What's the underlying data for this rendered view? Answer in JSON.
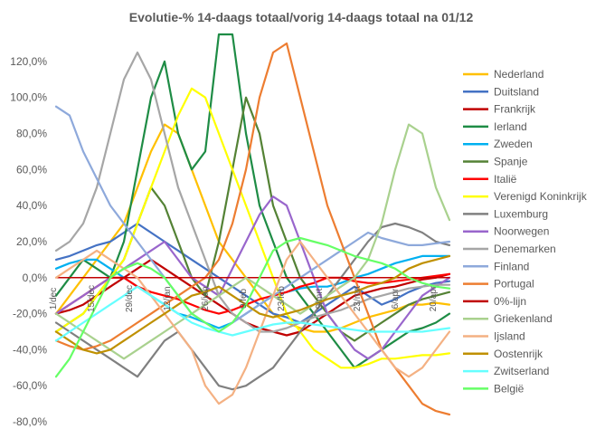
{
  "chart_data": {
    "type": "line",
    "title": "Evolutie-% 14-daags totaal/vorig  14-daags totaal na 01/12",
    "ylabel": "",
    "xlabel": "",
    "ylim": [
      -80,
      130
    ],
    "y_ticks": [
      {
        "value": 120,
        "label": "120,0%"
      },
      {
        "value": 100,
        "label": "100,0%"
      },
      {
        "value": 80,
        "label": "80,0%"
      },
      {
        "value": 60,
        "label": "60,0%"
      },
      {
        "value": 40,
        "label": "40,0%"
      },
      {
        "value": 20,
        "label": "20,0%"
      },
      {
        "value": 0,
        "label": "0,0%"
      },
      {
        "value": -20,
        "label": "-20,0%"
      },
      {
        "value": -40,
        "label": "-40,0%"
      },
      {
        "value": -60,
        "label": "-60,0%"
      },
      {
        "value": -80,
        "label": "-80,0%"
      }
    ],
    "x_ticks": [
      {
        "x": 0,
        "label": "1/dec"
      },
      {
        "x": 14,
        "label": "15/dec"
      },
      {
        "x": 28,
        "label": "29/dec"
      },
      {
        "x": 42,
        "label": "12/jan"
      },
      {
        "x": 56,
        "label": "26/jan"
      },
      {
        "x": 70,
        "label": "9/feb"
      },
      {
        "x": 84,
        "label": "23/feb"
      },
      {
        "x": 98,
        "label": "9/mrt"
      },
      {
        "x": 112,
        "label": "23/mrt"
      },
      {
        "x": 126,
        "label": "6/apr"
      },
      {
        "x": 140,
        "label": "20/apr"
      }
    ],
    "x": [
      0,
      5,
      10,
      15,
      20,
      25,
      30,
      35,
      40,
      45,
      50,
      55,
      60,
      65,
      70,
      75,
      80,
      85,
      90,
      95,
      100,
      105,
      110,
      115,
      120,
      125,
      130,
      135,
      140,
      145
    ],
    "xlim": [
      0,
      146
    ],
    "legend_position": "right",
    "grid": false,
    "series": [
      {
        "name": "Nederland",
        "color": "#FFC000",
        "values": [
          -20,
          -10,
          0,
          10,
          20,
          30,
          50,
          70,
          85,
          80,
          60,
          40,
          20,
          10,
          0,
          -10,
          -20,
          -25,
          -28,
          -30,
          -30,
          -28,
          -25,
          -22,
          -20,
          -18,
          -15,
          -15,
          -14,
          -15
        ]
      },
      {
        "name": "Duitsland",
        "color": "#4472C4",
        "values": [
          10,
          12,
          15,
          18,
          20,
          25,
          30,
          25,
          20,
          15,
          10,
          5,
          0,
          -5,
          -10,
          -15,
          -20,
          -22,
          -25,
          -20,
          -15,
          -10,
          -5,
          -10,
          -15,
          -12,
          -8,
          -5,
          -3,
          -2
        ]
      },
      {
        "name": "Frankrijk",
        "color": "#C00000",
        "values": [
          -20,
          -18,
          -15,
          -10,
          -5,
          0,
          5,
          10,
          5,
          0,
          -5,
          -10,
          -15,
          -20,
          -25,
          -28,
          -30,
          -32,
          -30,
          -25,
          -20,
          -15,
          -10,
          -8,
          -6,
          -5,
          -3,
          -1,
          0,
          2
        ]
      },
      {
        "name": "Ierland",
        "color": "#1E8C45",
        "values": [
          -10,
          0,
          10,
          5,
          0,
          20,
          60,
          100,
          120,
          80,
          60,
          70,
          135,
          135,
          80,
          40,
          20,
          0,
          -10,
          -20,
          -30,
          -40,
          -50,
          -45,
          -40,
          -35,
          -30,
          -28,
          -25,
          -20
        ]
      },
      {
        "name": "Zweden",
        "color": "#00B0F0",
        "values": [
          5,
          8,
          10,
          10,
          5,
          0,
          -5,
          -10,
          -15,
          -20,
          -22,
          -25,
          -28,
          -25,
          -20,
          -15,
          -10,
          -8,
          -6,
          -5,
          -5,
          -3,
          0,
          2,
          5,
          8,
          10,
          12,
          12,
          12
        ]
      },
      {
        "name": "Spanje",
        "color": "#548235",
        "values": [
          -30,
          -25,
          -20,
          -10,
          0,
          10,
          30,
          50,
          40,
          20,
          0,
          -10,
          20,
          60,
          100,
          80,
          40,
          20,
          0,
          -10,
          -20,
          -30,
          -35,
          -30,
          -25,
          -20,
          -15,
          -12,
          -10,
          -8
        ]
      },
      {
        "name": "Italië",
        "color": "#FF0000",
        "values": [
          -20,
          -15,
          -10,
          -5,
          0,
          0,
          -5,
          -8,
          -10,
          -12,
          -15,
          -18,
          -20,
          -18,
          -15,
          -12,
          -10,
          -8,
          -5,
          -3,
          0,
          0,
          -2,
          -3,
          -3,
          -2,
          -1,
          0,
          1,
          2
        ]
      },
      {
        "name": "Verenigd Koninkrijk",
        "color": "#FFFF00",
        "values": [
          -30,
          -25,
          -20,
          -10,
          0,
          10,
          30,
          50,
          70,
          90,
          105,
          100,
          80,
          60,
          40,
          20,
          0,
          -20,
          -30,
          -40,
          -45,
          -50,
          -50,
          -48,
          -45,
          -45,
          -44,
          -43,
          -43,
          -42
        ]
      },
      {
        "name": "Luxemburg",
        "color": "#808080",
        "values": [
          -25,
          -30,
          -35,
          -40,
          -45,
          -50,
          -55,
          -45,
          -35,
          -30,
          -40,
          -50,
          -60,
          -62,
          -60,
          -55,
          -50,
          -40,
          -30,
          -20,
          -10,
          0,
          10,
          20,
          28,
          30,
          28,
          25,
          20,
          18
        ]
      },
      {
        "name": "Noorwegen",
        "color": "#9966CC",
        "values": [
          -20,
          -15,
          -10,
          -5,
          0,
          5,
          10,
          15,
          20,
          10,
          0,
          -5,
          -10,
          5,
          20,
          35,
          45,
          40,
          20,
          0,
          -20,
          -30,
          -40,
          -45,
          -40,
          -30,
          -20,
          -10,
          -5,
          0
        ]
      },
      {
        "name": "Denemarken",
        "color": "#A6A6A6",
        "values": [
          15,
          20,
          30,
          50,
          80,
          110,
          125,
          110,
          80,
          50,
          30,
          10,
          -10,
          -20,
          -25,
          -30,
          -30,
          -28,
          -25,
          -22,
          -20,
          -18,
          -15,
          -12,
          -10,
          -8,
          -6,
          -5,
          -4,
          -4
        ]
      },
      {
        "name": "Finland",
        "color": "#8EA9DB",
        "values": [
          95,
          90,
          70,
          55,
          40,
          30,
          20,
          10,
          0,
          -10,
          -20,
          -25,
          -30,
          -25,
          -20,
          -15,
          -10,
          -5,
          0,
          5,
          10,
          15,
          20,
          25,
          22,
          20,
          18,
          18,
          19,
          20
        ]
      },
      {
        "name": "Portugal",
        "color": "#ED7D31",
        "values": [
          -35,
          -38,
          -40,
          -38,
          -35,
          -30,
          -25,
          -20,
          -15,
          -10,
          -5,
          0,
          10,
          30,
          60,
          100,
          125,
          130,
          100,
          70,
          40,
          20,
          0,
          -20,
          -40,
          -50,
          -60,
          -70,
          -74,
          -76
        ]
      },
      {
        "name": "0%-lijn",
        "color": "#C00000",
        "values": [
          0,
          0,
          0,
          0,
          0,
          0,
          0,
          0,
          0,
          0,
          0,
          0,
          0,
          0,
          0,
          0,
          0,
          0,
          0,
          0,
          0,
          0,
          0,
          0,
          0,
          0,
          0,
          0,
          0,
          0
        ]
      },
      {
        "name": "Griekenland",
        "color": "#A9D18E",
        "values": [
          -20,
          -25,
          -30,
          -35,
          -40,
          -45,
          -40,
          -35,
          -30,
          -25,
          -20,
          -15,
          -10,
          -5,
          0,
          -5,
          -10,
          -15,
          -20,
          -15,
          -10,
          -5,
          0,
          10,
          30,
          60,
          85,
          80,
          50,
          32
        ]
      },
      {
        "name": "Ijsland",
        "color": "#F4B183",
        "values": [
          0,
          5,
          10,
          15,
          10,
          5,
          0,
          -10,
          -20,
          -30,
          -40,
          -60,
          -70,
          -65,
          -50,
          -30,
          -10,
          10,
          20,
          10,
          0,
          -10,
          -20,
          -30,
          -40,
          -50,
          -55,
          -50,
          -40,
          -30
        ]
      },
      {
        "name": "Oostenrijk",
        "color": "#BF9000",
        "values": [
          -30,
          -35,
          -40,
          -42,
          -40,
          -35,
          -30,
          -25,
          -20,
          -15,
          -10,
          -8,
          -5,
          -10,
          -15,
          -20,
          -22,
          -20,
          -18,
          -15,
          -12,
          -10,
          -8,
          -5,
          -3,
          0,
          5,
          8,
          10,
          12
        ]
      },
      {
        "name": "Zwitserland",
        "color": "#66FFFF",
        "values": [
          -35,
          -30,
          -25,
          -20,
          -15,
          -10,
          -5,
          -10,
          -15,
          -20,
          -25,
          -28,
          -30,
          -32,
          -30,
          -28,
          -26,
          -25,
          -25,
          -26,
          -27,
          -28,
          -29,
          -30,
          -30,
          -30,
          -30,
          -30,
          -29,
          -28
        ]
      },
      {
        "name": "België",
        "color": "#66FF66",
        "values": [
          -55,
          -45,
          -30,
          -15,
          0,
          5,
          8,
          5,
          0,
          -10,
          -20,
          -25,
          -30,
          -25,
          -15,
          0,
          15,
          20,
          22,
          20,
          18,
          15,
          12,
          10,
          8,
          5,
          0,
          -3,
          -5,
          -6
        ]
      }
    ]
  }
}
